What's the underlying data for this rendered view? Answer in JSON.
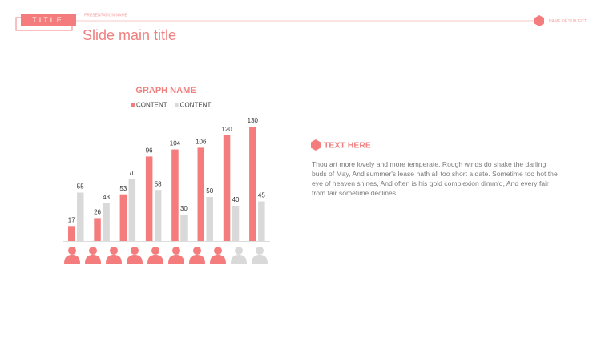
{
  "header": {
    "tag": "TITLE",
    "presentation_name": "PRESENTATION NAME",
    "subject": "NAME OF SUBJECT",
    "title": "Slide main title"
  },
  "chart_data": {
    "type": "bar",
    "title": "GRAPH NAME",
    "categories": [
      null,
      null,
      null,
      null,
      null,
      null,
      null,
      null
    ],
    "series": [
      {
        "name": "CONTENT",
        "color": "#f47c7c",
        "values": [
          17,
          26,
          53,
          96,
          104,
          106,
          120,
          130
        ]
      },
      {
        "name": "CONTENT",
        "color": "#d9d9d9",
        "values": [
          55,
          43,
          70,
          58,
          30,
          50,
          40,
          45
        ]
      }
    ],
    "legend": "top"
  },
  "text_block": {
    "heading": "TEXT HERE",
    "body": "Thou art more lovely and more temperate. Rough winds do shake the darling buds of May, And summer's lease hath all too short a date. Sometime too hot the eye of heaven shines, And often is his gold complexion dimm'd, And every fair from fair sometime declines."
  }
}
